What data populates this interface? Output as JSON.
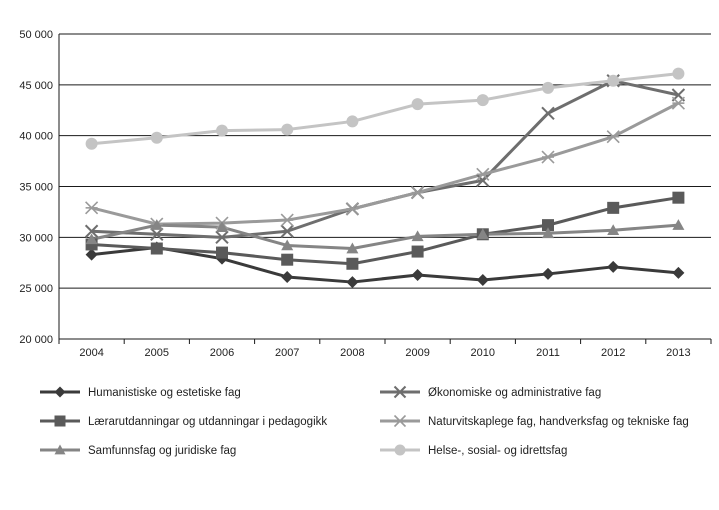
{
  "chart_data": {
    "type": "line",
    "title": "",
    "xlabel": "",
    "ylabel": "",
    "x": [
      "2004",
      "2005",
      "2006",
      "2007",
      "2008",
      "2009",
      "2010",
      "2011",
      "2012",
      "2013"
    ],
    "ylim": [
      20000,
      50000
    ],
    "yticks": [
      20000,
      25000,
      30000,
      35000,
      40000,
      45000,
      50000
    ],
    "ytick_labels": [
      "20 000",
      "25 000",
      "30 000",
      "35 000",
      "40 000",
      "45 000",
      "50 000"
    ],
    "grid": "horizontal",
    "legend_placement": "bottom",
    "series": [
      {
        "name": "Humanistiske og estetiske fag",
        "marker": "diamond",
        "color": "#3a3a3a",
        "values": [
          28300,
          29000,
          27900,
          26100,
          25600,
          26300,
          25800,
          26400,
          27100,
          26500
        ]
      },
      {
        "name": "Økonomiske og administrative fag",
        "marker": "x",
        "color": "#6e6e6e",
        "values": [
          30600,
          30300,
          30000,
          30600,
          32800,
          34400,
          35600,
          42200,
          45400,
          44000
        ]
      },
      {
        "name": "Lærarutdanningar og utdanningar i pedagogikk",
        "marker": "square",
        "color": "#5a5a5a",
        "values": [
          29300,
          28900,
          28500,
          27800,
          27400,
          28600,
          30300,
          31200,
          32900,
          33900
        ]
      },
      {
        "name": "Naturvitskaplege fag, handverksfag og tekniske fag",
        "marker": "asterisk",
        "color": "#9a9a9a",
        "values": [
          32900,
          31300,
          31400,
          31700,
          32800,
          34400,
          36200,
          37900,
          39900,
          43200
        ]
      },
      {
        "name": "Samfunnsfag og juridiske fag",
        "marker": "triangle",
        "color": "#858585",
        "values": [
          29800,
          31200,
          31000,
          29200,
          28900,
          30100,
          30300,
          30400,
          30700,
          31200
        ]
      },
      {
        "name": "Helse-, sosial- og idrettsfag",
        "marker": "circle",
        "color": "#c4c4c4",
        "values": [
          39200,
          39800,
          40500,
          40600,
          41400,
          43100,
          43500,
          44700,
          45400,
          46100
        ]
      }
    ]
  }
}
